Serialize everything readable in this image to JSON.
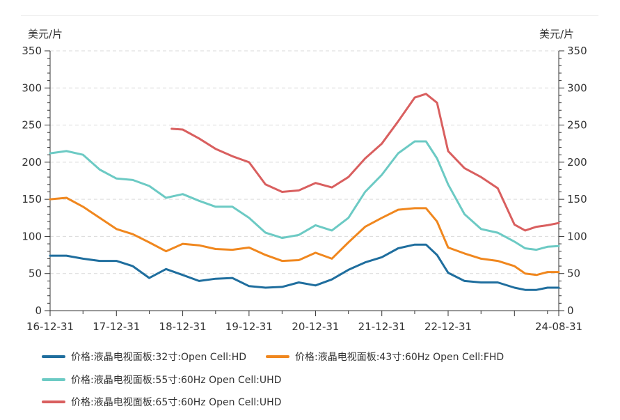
{
  "units": {
    "left": "美元/片",
    "right": "美元/片"
  },
  "colors": {
    "axis": "#333333",
    "grid": "#d9d9d9"
  },
  "chart_data": {
    "type": "line",
    "title": "",
    "xlabel": "",
    "ylabel": "美元/片",
    "ylim": [
      0,
      350
    ],
    "yticks": [
      0,
      50,
      100,
      150,
      200,
      250,
      300,
      350
    ],
    "xlim": [
      "2016-12-31",
      "2024-08-31"
    ],
    "xtick_labels": [
      {
        "date": "2016-12-31",
        "label": "16-12-31"
      },
      {
        "date": "2017-12-31",
        "label": "17-12-31"
      },
      {
        "date": "2018-12-31",
        "label": "18-12-31"
      },
      {
        "date": "2019-12-31",
        "label": "19-12-31"
      },
      {
        "date": "2020-12-31",
        "label": "20-12-31"
      },
      {
        "date": "2021-12-31",
        "label": "21-12-31"
      },
      {
        "date": "2022-12-31",
        "label": "22-12-31"
      },
      {
        "date": "2024-08-31",
        "label": "24-08-31"
      }
    ],
    "grid": true,
    "legend_position": "bottom",
    "series": [
      {
        "name": "价格:液晶电视面板:32寸:Open Cell:HD",
        "color": "#1f6e9e",
        "points": [
          [
            "2016-12-31",
            74
          ],
          [
            "2017-03-31",
            74
          ],
          [
            "2017-06-30",
            70
          ],
          [
            "2017-09-30",
            67
          ],
          [
            "2017-12-31",
            67
          ],
          [
            "2018-03-31",
            60
          ],
          [
            "2018-06-30",
            44
          ],
          [
            "2018-09-30",
            56
          ],
          [
            "2018-12-31",
            48
          ],
          [
            "2019-03-31",
            40
          ],
          [
            "2019-06-30",
            43
          ],
          [
            "2019-09-30",
            44
          ],
          [
            "2019-12-31",
            33
          ],
          [
            "2020-03-31",
            31
          ],
          [
            "2020-06-30",
            32
          ],
          [
            "2020-09-30",
            38
          ],
          [
            "2020-12-31",
            34
          ],
          [
            "2021-03-31",
            42
          ],
          [
            "2021-06-30",
            55
          ],
          [
            "2021-09-30",
            65
          ],
          [
            "2021-12-31",
            72
          ],
          [
            "2022-03-31",
            84
          ],
          [
            "2022-06-30",
            89
          ],
          [
            "2022-08-31",
            89
          ],
          [
            "2022-10-31",
            75
          ],
          [
            "2022-12-31",
            51
          ],
          [
            "2023-03-31",
            40
          ],
          [
            "2023-06-30",
            38
          ],
          [
            "2023-09-30",
            38
          ],
          [
            "2023-12-31",
            31
          ],
          [
            "2024-02-28",
            28
          ],
          [
            "2024-04-30",
            28
          ],
          [
            "2024-06-30",
            31
          ],
          [
            "2024-08-31",
            31
          ]
        ]
      },
      {
        "name": "价格:液晶电视面板:43寸:60Hz Open Cell:FHD",
        "color": "#f0871e",
        "points": [
          [
            "2016-12-31",
            150
          ],
          [
            "2017-03-31",
            152
          ],
          [
            "2017-06-30",
            140
          ],
          [
            "2017-09-30",
            125
          ],
          [
            "2017-12-31",
            110
          ],
          [
            "2018-03-31",
            103
          ],
          [
            "2018-06-30",
            92
          ],
          [
            "2018-09-30",
            80
          ],
          [
            "2018-12-31",
            90
          ],
          [
            "2019-03-31",
            88
          ],
          [
            "2019-06-30",
            83
          ],
          [
            "2019-09-30",
            82
          ],
          [
            "2019-12-31",
            85
          ],
          [
            "2020-03-31",
            75
          ],
          [
            "2020-06-30",
            67
          ],
          [
            "2020-09-30",
            68
          ],
          [
            "2020-12-31",
            78
          ],
          [
            "2021-03-31",
            70
          ],
          [
            "2021-06-30",
            92
          ],
          [
            "2021-09-30",
            113
          ],
          [
            "2021-12-31",
            125
          ],
          [
            "2022-03-31",
            136
          ],
          [
            "2022-06-30",
            138
          ],
          [
            "2022-08-31",
            138
          ],
          [
            "2022-10-31",
            120
          ],
          [
            "2022-12-31",
            85
          ],
          [
            "2023-03-31",
            77
          ],
          [
            "2023-06-30",
            70
          ],
          [
            "2023-09-30",
            67
          ],
          [
            "2023-12-31",
            60
          ],
          [
            "2024-02-28",
            50
          ],
          [
            "2024-04-30",
            48
          ],
          [
            "2024-06-30",
            52
          ],
          [
            "2024-08-31",
            52
          ]
        ]
      },
      {
        "name": "价格:液晶电视面板:55寸:60Hz Open Cell:UHD",
        "color": "#6ccac4",
        "points": [
          [
            "2016-12-31",
            212
          ],
          [
            "2017-03-31",
            215
          ],
          [
            "2017-06-30",
            210
          ],
          [
            "2017-09-30",
            190
          ],
          [
            "2017-12-31",
            178
          ],
          [
            "2018-03-31",
            176
          ],
          [
            "2018-06-30",
            168
          ],
          [
            "2018-09-30",
            152
          ],
          [
            "2018-12-31",
            157
          ],
          [
            "2019-03-31",
            148
          ],
          [
            "2019-06-30",
            140
          ],
          [
            "2019-09-30",
            140
          ],
          [
            "2019-12-31",
            125
          ],
          [
            "2020-03-31",
            105
          ],
          [
            "2020-06-30",
            98
          ],
          [
            "2020-09-30",
            102
          ],
          [
            "2020-12-31",
            115
          ],
          [
            "2021-03-31",
            108
          ],
          [
            "2021-06-30",
            125
          ],
          [
            "2021-09-30",
            160
          ],
          [
            "2021-12-31",
            183
          ],
          [
            "2022-03-31",
            212
          ],
          [
            "2022-06-30",
            228
          ],
          [
            "2022-08-31",
            228
          ],
          [
            "2022-10-31",
            205
          ],
          [
            "2022-12-31",
            170
          ],
          [
            "2023-03-31",
            130
          ],
          [
            "2023-06-30",
            110
          ],
          [
            "2023-09-30",
            105
          ],
          [
            "2023-12-31",
            93
          ],
          [
            "2024-02-28",
            84
          ],
          [
            "2024-04-30",
            82
          ],
          [
            "2024-06-30",
            86
          ],
          [
            "2024-08-31",
            87
          ]
        ]
      },
      {
        "name": "价格:液晶电视面板:65寸:60Hz Open Cell:UHD",
        "color": "#d95f5f",
        "points": [
          [
            "2018-10-31",
            245
          ],
          [
            "2018-12-31",
            244
          ],
          [
            "2019-03-31",
            232
          ],
          [
            "2019-06-30",
            218
          ],
          [
            "2019-09-30",
            208
          ],
          [
            "2019-12-31",
            200
          ],
          [
            "2020-03-31",
            170
          ],
          [
            "2020-06-30",
            160
          ],
          [
            "2020-09-30",
            162
          ],
          [
            "2020-12-31",
            172
          ],
          [
            "2021-03-31",
            166
          ],
          [
            "2021-06-30",
            180
          ],
          [
            "2021-09-30",
            205
          ],
          [
            "2021-12-31",
            225
          ],
          [
            "2022-03-31",
            255
          ],
          [
            "2022-06-30",
            287
          ],
          [
            "2022-08-31",
            292
          ],
          [
            "2022-10-31",
            280
          ],
          [
            "2022-12-31",
            215
          ],
          [
            "2023-03-31",
            192
          ],
          [
            "2023-06-30",
            180
          ],
          [
            "2023-09-30",
            165
          ],
          [
            "2023-12-31",
            116
          ],
          [
            "2024-02-28",
            108
          ],
          [
            "2024-04-30",
            113
          ],
          [
            "2024-06-30",
            115
          ],
          [
            "2024-08-31",
            118
          ]
        ]
      }
    ]
  }
}
